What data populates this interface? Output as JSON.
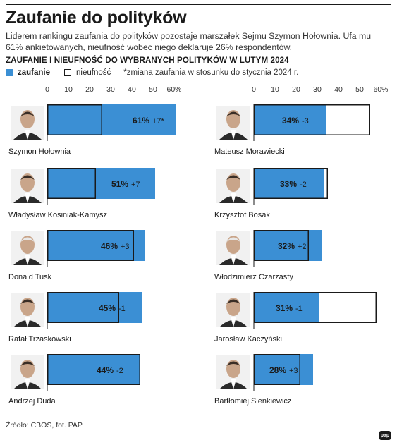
{
  "header": {
    "title": "Zaufanie do polityków",
    "lede": "Liderem rankingu zaufania do polityków pozostaje marszałek Sejmu Szymon Hołownia. Ufa mu 61% ankietowanych, nieufność wobec niego deklaruje 26% respondentów.",
    "subtitle": "ZAUFANIE I NIEUFNOŚĆ DO WYBRANYCH POLITYKÓW W LUTYM 2024"
  },
  "legend": {
    "trust_label": "zaufanie",
    "distrust_label": "nieufność",
    "note": "*zmiana zaufania w stosunku do stycznia 2024 r."
  },
  "footer": {
    "source": "Źródło: CBOS, fot. PAP",
    "logo": "pap"
  },
  "colors": {
    "trust": "#3b8fd4",
    "distrust_border": "#1a1a1a",
    "text": "#1a1a1a"
  },
  "chart_data": [
    {
      "type": "bar",
      "orientation": "horizontal",
      "xlim": [
        0,
        60
      ],
      "ticks": [
        "0",
        "10",
        "20",
        "30",
        "40",
        "50",
        "60%"
      ],
      "series": [
        {
          "name": "zaufanie"
        },
        {
          "name": "nieufność"
        }
      ],
      "categories": [
        "Szymon Hołownia",
        "Władysław Kosiniak-Kamysz",
        "Donald Tusk",
        "Rafał Trzaskowski",
        "Andrzej Duda"
      ],
      "trust": [
        61,
        51,
        46,
        45,
        44
      ],
      "distrust": [
        26,
        23,
        41,
        34,
        44
      ],
      "trust_labels": [
        "61%",
        "51%",
        "46%",
        "45%",
        "44%"
      ],
      "change_labels": [
        "+7*",
        "+7",
        "+3",
        "-1",
        "-2"
      ]
    },
    {
      "type": "bar",
      "orientation": "horizontal",
      "xlim": [
        0,
        60
      ],
      "ticks": [
        "0",
        "10",
        "20",
        "30",
        "40",
        "50",
        "60%"
      ],
      "series": [
        {
          "name": "zaufanie"
        },
        {
          "name": "nieufność"
        }
      ],
      "categories": [
        "Mateusz Morawiecki",
        "Krzysztof Bosak",
        "Włodzimierz Czarzasty",
        "Jarosław Kaczyński",
        "Bartłomiej Sienkiewicz"
      ],
      "trust": [
        34,
        33,
        32,
        31,
        28
      ],
      "distrust": [
        55,
        35,
        26,
        58,
        22
      ],
      "trust_labels": [
        "34%",
        "33%",
        "32%",
        "31%",
        "28%"
      ],
      "change_labels": [
        "-3",
        "-2",
        "+2",
        "-1",
        "+3"
      ]
    }
  ]
}
